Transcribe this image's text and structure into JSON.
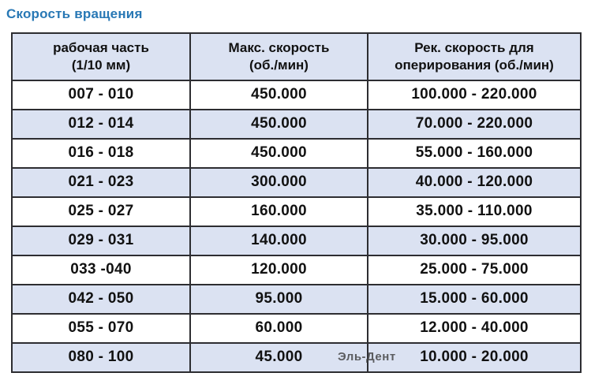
{
  "page": {
    "title": "Скорость вращения"
  },
  "table": {
    "headers": [
      "рабочая часть\n(1/10 мм)",
      "Макс. скорость\n(об./мин)",
      "Рек. скорость для\nоперирования (об./мин)"
    ],
    "rows": [
      [
        "007 - 010",
        "450.000",
        "100.000 - 220.000"
      ],
      [
        "012 - 014",
        "450.000",
        "70.000 - 220.000"
      ],
      [
        "016 - 018",
        "450.000",
        "55.000 - 160.000"
      ],
      [
        "021 - 023",
        "300.000",
        "40.000 - 120.000"
      ],
      [
        "025 - 027",
        "160.000",
        "35.000 - 110.000"
      ],
      [
        "029 - 031",
        "140.000",
        "30.000 - 95.000"
      ],
      [
        "033 -040",
        "120.000",
        "25.000 - 75.000"
      ],
      [
        "042 - 050",
        "95.000",
        "15.000 - 60.000"
      ],
      [
        "055 - 070",
        "60.000",
        "12.000 - 40.000"
      ],
      [
        "080 - 100",
        "45.000",
        "10.000 - 20.000"
      ]
    ],
    "watermark": "Эль-Дент"
  },
  "colors": {
    "title_blue": "#2878b5",
    "row_alt_bg": "#dbe2f2",
    "border": "#2d2d31",
    "watermark_gray": "#3f3f3f"
  }
}
